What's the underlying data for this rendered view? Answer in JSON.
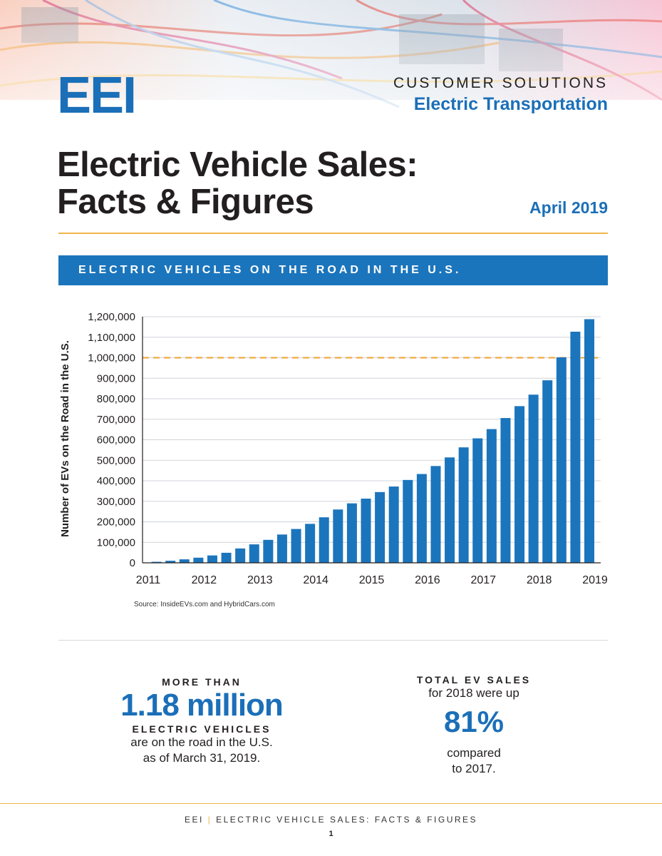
{
  "header": {
    "logo": "EEI",
    "kicker_line1": "CUSTOMER SOLUTIONS",
    "kicker_line2": "Electric Transportation",
    "title_line1": "Electric Vehicle Sales:",
    "title_line2": "Facts & Figures",
    "date": "April 2019"
  },
  "banner": "ELECTRIC VEHICLES ON THE ROAD IN THE U.S.",
  "chart_data": {
    "type": "bar",
    "ylabel": "Number of EVs on the Road in the U.S.",
    "ylim": [
      0,
      1200000
    ],
    "yticks": [
      "0",
      "100,000",
      "200,000",
      "300,000",
      "400,000",
      "500,000",
      "600,000",
      "700,000",
      "800,000",
      "900,000",
      "1,000,000",
      "1,100,000",
      "1,200,000"
    ],
    "xticks": [
      "2011",
      "2012",
      "2013",
      "2014",
      "2015",
      "2016",
      "2017",
      "2018",
      "2019"
    ],
    "xlim": [
      2011,
      2019
    ],
    "reference_line": 1000000,
    "grid": true,
    "x": [
      2011.25,
      2011.5,
      2011.75,
      2012,
      2012.25,
      2012.5,
      2012.75,
      2013,
      2013.25,
      2013.5,
      2013.75,
      2014,
      2014.25,
      2014.5,
      2014.75,
      2015,
      2015.25,
      2015.5,
      2015.75,
      2016,
      2016.25,
      2016.5,
      2016.75,
      2017,
      2017.25,
      2017.5,
      2017.75,
      2018,
      2018.25,
      2018.5,
      2018.75,
      2019
    ],
    "values": [
      5000,
      10000,
      17000,
      25000,
      36000,
      49000,
      70000,
      90000,
      112000,
      138000,
      165000,
      190000,
      222000,
      260000,
      290000,
      313000,
      345000,
      372000,
      404000,
      433000,
      472000,
      514000,
      563000,
      607000,
      652000,
      706000,
      764000,
      820000,
      890000,
      1002000,
      1127000,
      1188000
    ],
    "bar_color": "#1b75bc",
    "ref_color": "#f0a22e"
  },
  "source": "Source: InsideEVs.com and HybridCars.com",
  "stats": {
    "left_top": "MORE THAN",
    "left_big": "1.18 million",
    "left_caps": "ELECTRIC VEHICLES",
    "left_line1": "are on the road in the U.S.",
    "left_line2": "as of March 31, 2019.",
    "right_top": "TOTAL EV SALES",
    "right_line1": "for 2018 were up",
    "right_big": "81%",
    "right_line2": "compared",
    "right_line3": "to 2017."
  },
  "footer": {
    "brand": "EEI",
    "separator": "|",
    "text": "ELECTRIC VEHICLE SALES: FACTS & FIGURES",
    "page": "1"
  }
}
